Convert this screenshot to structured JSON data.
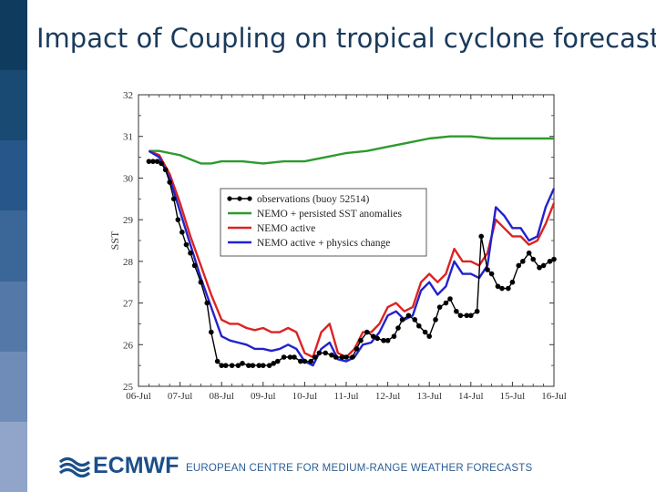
{
  "slide": {
    "title": "Impact of Coupling on tropical cyclone forecast",
    "side_band_colors": [
      "#0f3b5f",
      "#184a74",
      "#27578a",
      "#3a6797",
      "#5479a8",
      "#6f8cb8",
      "#90a5c9"
    ]
  },
  "footer": {
    "logo_text": "ECMWF",
    "tagline": "EUROPEAN CENTRE FOR MEDIUM-RANGE WEATHER FORECASTS",
    "brand_color": "#1b4f8a",
    "logo_icon": "ecmwf-logo-icon"
  },
  "chart_data": {
    "type": "line",
    "title": "",
    "xlabel": "",
    "ylabel": "SST",
    "xlim": [
      0,
      10
    ],
    "ylim": [
      25,
      32
    ],
    "yticks": [
      25,
      26,
      27,
      28,
      29,
      30,
      31,
      32
    ],
    "x_tick_values": [
      0,
      1,
      2,
      3,
      4,
      5,
      6,
      7,
      8,
      9,
      10
    ],
    "x_tick_labels": [
      "06-Jul",
      "07-Jul",
      "08-Jul",
      "09-Jul",
      "10-Jul",
      "11-Jul",
      "12-Jul",
      "13-Jul",
      "14-Jul",
      "15-Jul",
      "16-Jul"
    ],
    "legend_position": "center-right",
    "series": [
      {
        "name": "observations (buoy 52514)",
        "color": "#000000",
        "markers": true,
        "x": [
          0.25,
          0.35,
          0.45,
          0.55,
          0.65,
          0.75,
          0.85,
          0.95,
          1.05,
          1.15,
          1.25,
          1.35,
          1.5,
          1.65,
          1.75,
          1.9,
          2.0,
          2.1,
          2.25,
          2.4,
          2.5,
          2.65,
          2.75,
          2.9,
          3.0,
          3.15,
          3.25,
          3.35,
          3.5,
          3.65,
          3.75,
          3.9,
          4.0,
          4.15,
          4.25,
          4.35,
          4.5,
          4.65,
          4.75,
          4.9,
          5.0,
          5.15,
          5.25,
          5.35,
          5.5,
          5.65,
          5.75,
          5.9,
          6.0,
          6.15,
          6.25,
          6.35,
          6.5,
          6.65,
          6.75,
          6.9,
          7.0,
          7.15,
          7.25,
          7.4,
          7.5,
          7.65,
          7.75,
          7.9,
          8.0,
          8.15,
          8.25,
          8.4,
          8.5,
          8.65,
          8.75,
          8.9,
          9.0,
          9.15,
          9.25,
          9.4,
          9.5,
          9.65,
          9.75,
          9.9,
          10.0
        ],
        "y": [
          30.4,
          30.4,
          30.4,
          30.35,
          30.2,
          29.9,
          29.5,
          29.0,
          28.7,
          28.4,
          28.2,
          27.9,
          27.5,
          27.0,
          26.3,
          25.6,
          25.5,
          25.5,
          25.5,
          25.5,
          25.55,
          25.5,
          25.5,
          25.5,
          25.5,
          25.5,
          25.55,
          25.6,
          25.7,
          25.7,
          25.7,
          25.6,
          25.6,
          25.6,
          25.7,
          25.8,
          25.8,
          25.75,
          25.7,
          25.7,
          25.7,
          25.7,
          25.9,
          26.1,
          26.3,
          26.2,
          26.15,
          26.1,
          26.1,
          26.2,
          26.4,
          26.6,
          26.7,
          26.6,
          26.45,
          26.3,
          26.2,
          26.6,
          26.9,
          27.0,
          27.1,
          26.8,
          26.7,
          26.7,
          26.7,
          26.8,
          28.6,
          27.8,
          27.7,
          27.4,
          27.35,
          27.35,
          27.5,
          27.9,
          28.0,
          28.2,
          28.05,
          27.85,
          27.9,
          28.0,
          28.05
        ]
      },
      {
        "name": "NEMO + persisted SST anomalies",
        "color": "#2e9a2e",
        "markers": false,
        "x": [
          0.25,
          0.5,
          0.75,
          1.0,
          1.25,
          1.5,
          1.75,
          2.0,
          2.5,
          3.0,
          3.5,
          4.0,
          4.5,
          5.0,
          5.5,
          6.0,
          6.5,
          7.0,
          7.5,
          8.0,
          8.5,
          9.0,
          9.5,
          10.0
        ],
        "y": [
          30.65,
          30.65,
          30.6,
          30.55,
          30.45,
          30.35,
          30.35,
          30.4,
          30.4,
          30.35,
          30.4,
          30.4,
          30.5,
          30.6,
          30.65,
          30.75,
          30.85,
          30.95,
          31.0,
          31.0,
          30.95,
          30.95,
          30.95,
          30.95
        ]
      },
      {
        "name": "NEMO active",
        "color": "#dd2222",
        "markers": false,
        "x": [
          0.25,
          0.5,
          0.75,
          1.0,
          1.25,
          1.5,
          1.75,
          2.0,
          2.2,
          2.4,
          2.6,
          2.8,
          3.0,
          3.2,
          3.4,
          3.6,
          3.8,
          4.0,
          4.2,
          4.4,
          4.6,
          4.8,
          5.0,
          5.2,
          5.4,
          5.6,
          5.8,
          6.0,
          6.2,
          6.4,
          6.6,
          6.8,
          7.0,
          7.2,
          7.4,
          7.6,
          7.8,
          8.0,
          8.2,
          8.4,
          8.6,
          8.8,
          9.0,
          9.2,
          9.4,
          9.6,
          9.8,
          10.0
        ],
        "y": [
          30.65,
          30.55,
          30.1,
          29.4,
          28.6,
          27.9,
          27.2,
          26.6,
          26.5,
          26.5,
          26.4,
          26.35,
          26.4,
          26.3,
          26.3,
          26.4,
          26.3,
          25.8,
          25.7,
          26.3,
          26.5,
          25.8,
          25.7,
          25.9,
          26.3,
          26.3,
          26.5,
          26.9,
          27.0,
          26.8,
          26.9,
          27.5,
          27.7,
          27.5,
          27.7,
          28.3,
          28.0,
          28.0,
          27.9,
          28.2,
          29.0,
          28.8,
          28.6,
          28.6,
          28.4,
          28.5,
          28.9,
          29.4
        ]
      },
      {
        "name": "NEMO active + physics change",
        "color": "#2222cc",
        "markers": false,
        "x": [
          0.25,
          0.5,
          0.75,
          1.0,
          1.25,
          1.5,
          1.75,
          2.0,
          2.2,
          2.4,
          2.6,
          2.8,
          3.0,
          3.2,
          3.4,
          3.6,
          3.8,
          4.0,
          4.2,
          4.4,
          4.6,
          4.8,
          5.0,
          5.2,
          5.4,
          5.6,
          5.8,
          6.0,
          6.2,
          6.4,
          6.6,
          6.8,
          7.0,
          7.2,
          7.4,
          7.6,
          7.8,
          8.0,
          8.2,
          8.4,
          8.6,
          8.8,
          9.0,
          9.2,
          9.4,
          9.6,
          9.8,
          10.0
        ],
        "y": [
          30.65,
          30.5,
          30.0,
          29.2,
          28.4,
          27.6,
          26.9,
          26.2,
          26.1,
          26.05,
          26.0,
          25.9,
          25.9,
          25.85,
          25.9,
          26.0,
          25.9,
          25.6,
          25.5,
          25.9,
          26.05,
          25.65,
          25.6,
          25.7,
          26.0,
          26.05,
          26.3,
          26.7,
          26.8,
          26.6,
          26.7,
          27.3,
          27.5,
          27.2,
          27.4,
          28.0,
          27.7,
          27.7,
          27.6,
          27.9,
          29.3,
          29.1,
          28.8,
          28.8,
          28.5,
          28.6,
          29.3,
          29.75
        ]
      }
    ]
  }
}
